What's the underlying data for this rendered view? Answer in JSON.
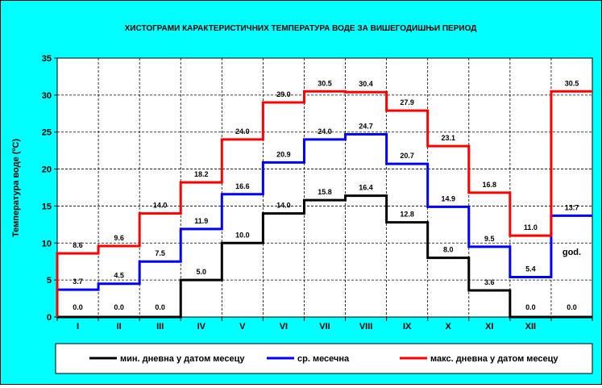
{
  "chart_data": {
    "type": "line",
    "step": true,
    "title": "ХИСТОГРАМИ КАРАКТЕРИСТИЧНИХ ТЕМПЕРАТУРА ВОДЕ ЗА ВИШЕГОДИШЊИ ПЕРИОД",
    "xlabel": "",
    "ylabel": "Температура воде (ºC)",
    "ylim": [
      0,
      35
    ],
    "yticks": [
      "0",
      "5",
      "10",
      "15",
      "20",
      "25",
      "30",
      "35"
    ],
    "categories": [
      "I",
      "II",
      "III",
      "IV",
      "V",
      "VI",
      "VII",
      "VIII",
      "IX",
      "X",
      "XI",
      "XII",
      ""
    ],
    "annotation": "god.",
    "grid": true,
    "legend_position": "bottom",
    "series": [
      {
        "name": "мин. дневна у датом месецу",
        "color": "#000000",
        "values": [
          0.0,
          0.0,
          0.0,
          5.0,
          10.0,
          14.0,
          15.8,
          16.4,
          12.8,
          8.0,
          3.6,
          0.0,
          0.0
        ],
        "labels": [
          "0.0",
          "0.0",
          "0.0",
          "5.0",
          "10.0",
          "14.0",
          "15.8",
          "16.4",
          "12.8",
          "8.0",
          "3.6",
          "0.0",
          "0.0"
        ]
      },
      {
        "name": "ср. месечна",
        "color": "#0000FF",
        "values": [
          3.7,
          4.5,
          7.5,
          11.9,
          16.6,
          20.9,
          24.0,
          24.7,
          20.7,
          14.9,
          9.5,
          5.4,
          13.7
        ],
        "labels": [
          "3.7",
          "4.5",
          "7.5",
          "11.9",
          "16.6",
          "20.9",
          "24.0",
          "24.7",
          "20.7",
          "14.9",
          "9.5",
          "5.4",
          "13.7"
        ]
      },
      {
        "name": "макс. дневна у датом месецу",
        "color": "#FF0000",
        "values": [
          8.6,
          9.6,
          14.0,
          18.2,
          24.0,
          29.0,
          30.5,
          30.4,
          27.9,
          23.1,
          16.8,
          11.0,
          30.5
        ],
        "labels": [
          "8.6",
          "9.6",
          "14.0",
          "18.2",
          "24.0",
          "29.0",
          "30.5",
          "30.4",
          "27.9",
          "23.1",
          "16.8",
          "11.0",
          "30.5"
        ]
      }
    ]
  }
}
